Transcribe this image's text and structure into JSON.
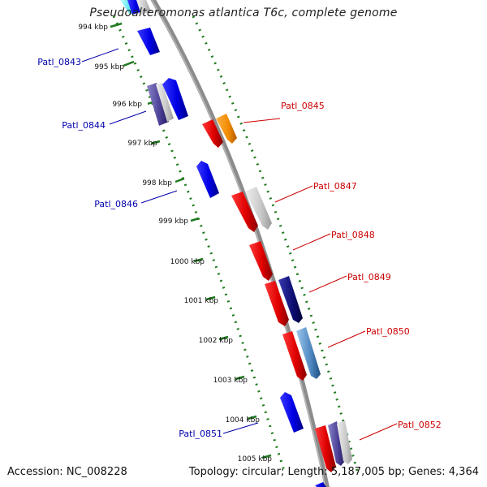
{
  "header": {
    "title": "Pseudoalteromonas atlantica T6c, complete genome"
  },
  "footer": {
    "accession": "Accession: NC_008228",
    "summary": "Topology: circular; Length: 5,187,005 bp; Genes: 4,364"
  },
  "colors": {
    "backbone": "#8c8c8c",
    "ticks": "#1f7a1f",
    "forward_label": "#cc0000",
    "reverse_label": "#0000aa"
  },
  "ticks": [
    "994 kbp",
    "995 kbp",
    "996 kbp",
    "997 kbp",
    "998 kbp",
    "999 kbp",
    "1000 kbp",
    "1001 kbp",
    "1002 kbp",
    "1003 kbp",
    "1004 kbp",
    "1005 kbp"
  ],
  "gene_labels_forward": [
    "Patl_0845",
    "Patl_0847",
    "Patl_0848",
    "Patl_0849",
    "Patl_0850",
    "Patl_0852"
  ],
  "gene_labels_reverse": [
    "Patl_0843",
    "Patl_0844",
    "Patl_0846",
    "Patl_0851"
  ]
}
